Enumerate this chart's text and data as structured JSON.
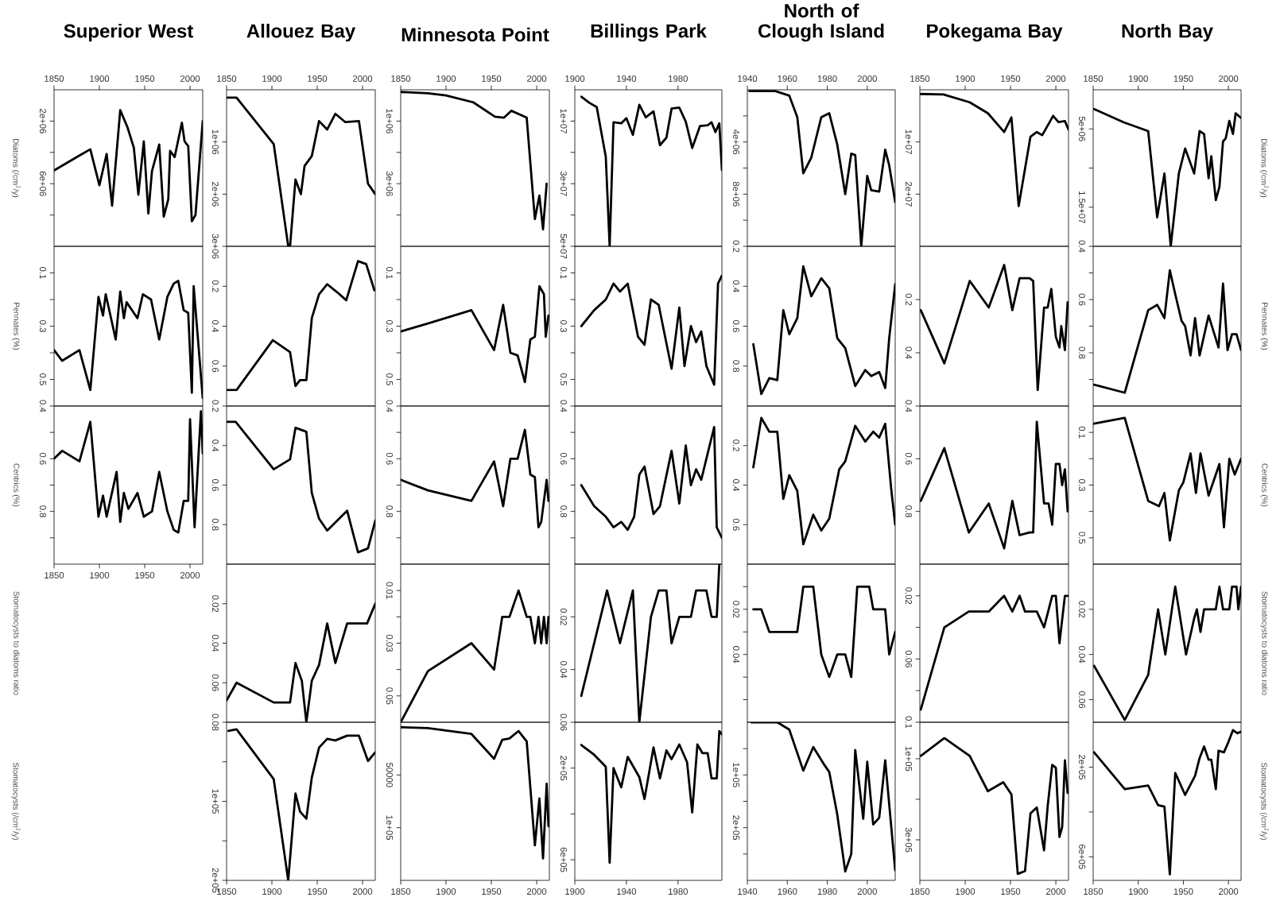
{
  "chart_data": [
    {
      "type": "line",
      "title": "Superior West",
      "ylabel": "Diatoms (/cm$^{2}$/y)",
      "xlim": [
        1850,
        2014
      ],
      "xticks": [
        1850,
        1900,
        1950,
        2000
      ],
      "ylim": [
        10000000,
        0
      ],
      "yticks": [
        {
          "value": 2000000,
          "label": "2e+06"
        },
        {
          "value": 4000000,
          "label": null
        },
        {
          "value": 6000000,
          "label": "6e+06"
        },
        {
          "value": 8000000,
          "label": null
        }
      ],
      "x": [
        1850,
        1878,
        1890,
        1900,
        1908,
        1914,
        1923,
        1931,
        1938,
        1943,
        1949,
        1954,
        1958,
        1966,
        1971,
        1976,
        1978,
        1983,
        1991,
        1994,
        1998,
        2002,
        2006,
        2014
      ],
      "values": [
        5150000,
        4200000,
        3800000,
        6100000,
        4100000,
        7400000,
        1300000,
        2400000,
        3700000,
        6700000,
        3300000,
        7900000,
        5200000,
        3500000,
        8100000,
        7000000,
        3900000,
        4300000,
        2100000,
        3300000,
        3600000,
        8400000,
        8000000,
        2000000
      ]
    },
    {
      "type": "line",
      "ylabel": "Pennates (%)",
      "tick_labels": "y",
      "xlim": [
        1850,
        2014
      ],
      "ylim": [
        0.6,
        0
      ],
      "yticks": [
        0.1,
        {
          "value": 0.2,
          "label": null
        },
        0.3,
        {
          "value": 0.4,
          "label": null
        },
        0.5
      ],
      "x": [
        1850,
        1859,
        1878,
        1890,
        1899,
        1904,
        1907,
        1918,
        1923,
        1927,
        1930,
        1942,
        1948,
        1957,
        1966,
        1975,
        1982,
        1987,
        1993,
        1998,
        2002,
        2004,
        2014
      ],
      "values": [
        0.39,
        0.43,
        0.39,
        0.54,
        0.19,
        0.26,
        0.18,
        0.35,
        0.17,
        0.27,
        0.21,
        0.27,
        0.18,
        0.2,
        0.35,
        0.19,
        0.14,
        0.13,
        0.24,
        0.25,
        0.55,
        0.15,
        0.57
      ]
    },
    {
      "type": "line",
      "ylabel": "Centrics (%)",
      "xlim": [
        1850,
        2014
      ],
      "xticks": [
        1850,
        1900,
        1950,
        2000
      ],
      "ylim": [
        1.0,
        0.4
      ],
      "yticks": [
        0.4,
        {
          "value": 0.5,
          "label": null
        },
        0.6,
        {
          "value": 0.7,
          "label": null
        },
        0.8,
        {
          "value": 0.9,
          "label": null
        }
      ],
      "x": [
        1850,
        1859,
        1878,
        1890,
        1899,
        1904,
        1908,
        1919,
        1923,
        1927,
        1932,
        1942,
        1949,
        1958,
        1966,
        1975,
        1982,
        1987,
        1993,
        1998,
        2000,
        2005,
        2012,
        2014
      ],
      "values": [
        0.6,
        0.57,
        0.61,
        0.46,
        0.82,
        0.74,
        0.82,
        0.65,
        0.84,
        0.73,
        0.79,
        0.73,
        0.82,
        0.8,
        0.65,
        0.8,
        0.87,
        0.88,
        0.76,
        0.76,
        0.45,
        0.86,
        0.42,
        0.58
      ]
    },
    {
      "type": "line",
      "title": "Allouez Bay",
      "xlim": [
        1850,
        2014
      ],
      "xticks": [
        1850,
        1900,
        1950,
        2000
      ],
      "ylim": [
        3000000,
        0
      ],
      "yticks": [
        {
          "value": 1000000,
          "label": "1e+06"
        },
        {
          "value": 2000000,
          "label": "2e+06"
        },
        {
          "value": 3000000,
          "label": "3e+06"
        }
      ],
      "x": [
        1850,
        1861,
        1902,
        1918,
        1920,
        1926,
        1932,
        1936,
        1944,
        1952,
        1961,
        1970,
        1981,
        1996,
        2006,
        2014
      ],
      "values": [
        150000,
        150000,
        1040000,
        3000000,
        3000000,
        1720000,
        2000000,
        1460000,
        1270000,
        600000,
        760000,
        460000,
        620000,
        600000,
        1800000,
        2000000
      ]
    },
    {
      "type": "line",
      "tick_labels": "y",
      "xlim": [
        1850,
        2014
      ],
      "ylim": [
        0.8,
        0
      ],
      "yticks": [
        0.2,
        0.4,
        0.6
      ],
      "x": [
        1850,
        1861,
        1901,
        1920,
        1926,
        1931,
        1938,
        1944,
        1952,
        1961,
        1972,
        1982,
        1995,
        2004,
        2013
      ],
      "values": [
        0.72,
        0.72,
        0.47,
        0.53,
        0.7,
        0.67,
        0.67,
        0.36,
        0.24,
        0.19,
        0.23,
        0.27,
        0.074,
        0.089,
        0.22
      ]
    },
    {
      "type": "line",
      "tick_labels": "y",
      "xlim": [
        1850,
        2014
      ],
      "ylim": [
        1.0,
        0.2
      ],
      "yticks": [
        0.2,
        0.4,
        0.6,
        0.8
      ],
      "x": [
        1850,
        1860,
        1902,
        1920,
        1926,
        1938,
        1944,
        1952,
        1961,
        1983,
        1995,
        2006,
        2014
      ],
      "values": [
        0.28,
        0.28,
        0.52,
        0.47,
        0.31,
        0.33,
        0.64,
        0.77,
        0.83,
        0.73,
        0.94,
        0.92,
        0.78
      ]
    },
    {
      "type": "line",
      "ylabel": "Stomatocysts to diatoms ratio",
      "tick_labels": "y",
      "xlim": [
        1850,
        2014
      ],
      "ylim": [
        0.08,
        0
      ],
      "yticks": [
        0.02,
        0.04,
        0.06,
        0.08
      ],
      "x": [
        1850,
        1861,
        1902,
        1920,
        1926,
        1933,
        1938,
        1944,
        1952,
        1961,
        1970,
        1983,
        2005,
        2014
      ],
      "values": [
        0.069,
        0.06,
        0.07,
        0.07,
        0.05,
        0.059,
        0.08,
        0.059,
        0.051,
        0.03,
        0.05,
        0.03,
        0.03,
        0.02
      ]
    },
    {
      "type": "line",
      "ylabel": "Stomatocysts (/cm$^{2}$/y)",
      "xlim": [
        1850,
        2014
      ],
      "xticks": [
        1850,
        1900,
        1950,
        2000
      ],
      "ylim": [
        200000,
        0
      ],
      "yticks": [
        {
          "value": 50000,
          "label": null
        },
        {
          "value": 100000,
          "label": "1e+05"
        },
        {
          "value": 150000,
          "label": null
        },
        {
          "value": 200000,
          "label": "2e+05"
        }
      ],
      "x": [
        1852,
        1861,
        1902,
        1918,
        1926,
        1931,
        1938,
        1944,
        1952,
        1961,
        1970,
        1983,
        1996,
        2006,
        2014
      ],
      "values": [
        11000,
        9000,
        72000,
        200000,
        90000,
        113000,
        122000,
        70000,
        32000,
        21000,
        23000,
        17000,
        17000,
        49000,
        38000
      ]
    },
    {
      "type": "line",
      "title": "Minnesota Point",
      "xlim": [
        1850,
        2014
      ],
      "xticks": [
        1850,
        1900,
        1950,
        2000
      ],
      "ylim": [
        5000000,
        0
      ],
      "yticks": [
        {
          "value": 1000000,
          "label": "1e+06"
        },
        {
          "value": 2000000,
          "label": null
        },
        {
          "value": 3000000,
          "label": "3e+06"
        },
        {
          "value": 4000000,
          "label": null
        }
      ],
      "x": [
        1850,
        1880,
        1900,
        1930,
        1954,
        1964,
        1972,
        1989,
        1998,
        2003,
        2007,
        2011
      ],
      "values": [
        70000,
        110000,
        180000,
        400000,
        860000,
        890000,
        670000,
        890000,
        4130000,
        3380000,
        4460000,
        3000000
      ]
    },
    {
      "type": "line",
      "tick_labels": "y",
      "xlim": [
        1850,
        2014
      ],
      "ylim": [
        0.6,
        0
      ],
      "yticks": [
        0.1,
        {
          "value": 0.2,
          "label": null
        },
        0.3,
        {
          "value": 0.4,
          "label": null
        },
        0.5
      ],
      "x": [
        1850,
        1880,
        1928,
        1953,
        1963,
        1971,
        1979,
        1987,
        1993,
        1998,
        2003,
        2008,
        2010,
        2013
      ],
      "values": [
        0.32,
        0.29,
        0.24,
        0.39,
        0.22,
        0.4,
        0.41,
        0.51,
        0.35,
        0.34,
        0.15,
        0.18,
        0.34,
        0.26
      ]
    },
    {
      "type": "line",
      "tick_labels": "y",
      "xlim": [
        1850,
        2014
      ],
      "ylim": [
        1.0,
        0.4
      ],
      "yticks": [
        0.4,
        {
          "value": 0.5,
          "label": null
        },
        0.6,
        {
          "value": 0.7,
          "label": null
        },
        0.8,
        {
          "value": 0.9,
          "label": null
        }
      ],
      "x": [
        1850,
        1880,
        1928,
        1953,
        1963,
        1971,
        1979,
        1987,
        1993,
        1998,
        2002,
        2005,
        2011,
        2013
      ],
      "values": [
        0.68,
        0.72,
        0.76,
        0.61,
        0.78,
        0.6,
        0.6,
        0.49,
        0.66,
        0.67,
        0.86,
        0.84,
        0.68,
        0.76
      ]
    },
    {
      "type": "line",
      "tick_labels": "y",
      "xlim": [
        1850,
        2014
      ],
      "ylim": [
        0.06,
        0
      ],
      "yticks": [
        0.01,
        {
          "value": 0.02,
          "label": null
        },
        0.03,
        {
          "value": 0.04,
          "label": null
        },
        0.05
      ],
      "x": [
        1850,
        1880,
        1928,
        1953,
        1962,
        1970,
        1980,
        1989,
        1993,
        1998,
        2002,
        2005,
        2008,
        2011,
        2013
      ],
      "values": [
        0.06,
        0.0406,
        0.03,
        0.04,
        0.02,
        0.02,
        0.01,
        0.02,
        0.02,
        0.03,
        0.02,
        0.03,
        0.02,
        0.03,
        0.02
      ]
    },
    {
      "type": "line",
      "xlim": [
        1850,
        2014
      ],
      "xticks": [
        1850,
        1900,
        1950,
        2000
      ],
      "ylim": [
        150000,
        0
      ],
      "yticks": [
        50000,
        {
          "value": 100000,
          "label": "1e+05"
        }
      ],
      "x": [
        1850,
        1880,
        1928,
        1953,
        1962,
        1970,
        1980,
        1989,
        1998,
        2003,
        2007,
        2011,
        2013
      ],
      "values": [
        4700,
        5600,
        11100,
        34700,
        16700,
        15300,
        8300,
        18100,
        116700,
        72200,
        129200,
        58300,
        98600
      ]
    },
    {
      "type": "line",
      "title": "Billings Park",
      "xlim": [
        1900,
        2014
      ],
      "xticks": [
        1900,
        1940,
        1980
      ],
      "ylim": [
        50000000,
        0
      ],
      "yticks": [
        {
          "value": 10000000,
          "label": "1e+07"
        },
        {
          "value": 20000000,
          "label": null
        },
        {
          "value": 30000000,
          "label": "3e+07"
        },
        {
          "value": 40000000,
          "label": null
        },
        {
          "value": 50000000,
          "label": "5e+07"
        }
      ],
      "x": [
        1905,
        1911,
        1917,
        1924,
        1927,
        1930,
        1936,
        1940,
        1945,
        1950,
        1955,
        1961,
        1966,
        1971,
        1975,
        1981,
        1986,
        1991,
        1997,
        2003,
        2006,
        2009,
        2012,
        2014
      ],
      "values": [
        2200000,
        4100000,
        5500000,
        21400000,
        50000000,
        10400000,
        10700000,
        9100000,
        14400000,
        4800000,
        8800000,
        6900000,
        17700000,
        15300000,
        6000000,
        5700000,
        10200000,
        18600000,
        11600000,
        11300000,
        10400000,
        13500000,
        10700000,
        25600000
      ]
    },
    {
      "type": "line",
      "tick_labels": "y",
      "xlim": [
        1900,
        2014
      ],
      "ylim": [
        0.6,
        0
      ],
      "yticks": [
        0.1,
        {
          "value": 0.2,
          "label": null
        },
        0.3,
        {
          "value": 0.4,
          "label": null
        },
        0.5
      ],
      "x": [
        1905,
        1915,
        1924,
        1930,
        1935,
        1941,
        1949,
        1954,
        1959,
        1965,
        1975,
        1981,
        1985,
        1990,
        1994,
        1998,
        2002,
        2008,
        2011,
        2014
      ],
      "values": [
        0.3,
        0.24,
        0.2,
        0.14,
        0.17,
        0.14,
        0.34,
        0.37,
        0.2,
        0.22,
        0.46,
        0.23,
        0.45,
        0.3,
        0.36,
        0.32,
        0.45,
        0.52,
        0.14,
        0.11
      ]
    },
    {
      "type": "line",
      "tick_labels": "y",
      "xlim": [
        1900,
        2014
      ],
      "ylim": [
        1.0,
        0.4
      ],
      "yticks": [
        0.4,
        {
          "value": 0.5,
          "label": null
        },
        0.6,
        {
          "value": 0.7,
          "label": null
        },
        0.8,
        {
          "value": 0.9,
          "label": null
        }
      ],
      "x": [
        1905,
        1915,
        1924,
        1930,
        1936,
        1941,
        1946,
        1950,
        1954,
        1961,
        1966,
        1975,
        1981,
        1986,
        1990,
        1994,
        1998,
        2003,
        2008,
        2010,
        2014
      ],
      "values": [
        0.7,
        0.78,
        0.82,
        0.86,
        0.84,
        0.87,
        0.82,
        0.66,
        0.63,
        0.81,
        0.78,
        0.57,
        0.77,
        0.55,
        0.7,
        0.64,
        0.68,
        0.58,
        0.48,
        0.86,
        0.9
      ]
    },
    {
      "type": "line",
      "tick_labels": "y",
      "xlim": [
        1900,
        2014
      ],
      "ylim": [
        0.06,
        0
      ],
      "yticks": [
        0.02,
        0.04,
        0.06
      ],
      "x": [
        1905,
        1915,
        1925,
        1935,
        1945,
        1950,
        1959,
        1965,
        1971,
        1975,
        1981,
        1990,
        1994,
        2002,
        2006,
        2010,
        2012
      ],
      "values": [
        0.05,
        0.03,
        0.01,
        0.03,
        0.01,
        0.06,
        0.02,
        0.01,
        0.01,
        0.03,
        0.02,
        0.02,
        0.01,
        0.01,
        0.02,
        0.02,
        0.0
      ]
    },
    {
      "type": "line",
      "xlim": [
        1900,
        2014
      ],
      "xticks": [
        1900,
        1940,
        1980
      ],
      "ylim": [
        690000,
        0
      ],
      "yticks": [
        {
          "value": 200000,
          "label": "2e+05"
        },
        {
          "value": 400000,
          "label": null
        },
        {
          "value": 600000,
          "label": "6e+05"
        }
      ],
      "x": [
        1905,
        1915,
        1924,
        1927,
        1930,
        1936,
        1941,
        1950,
        1954,
        1961,
        1966,
        1971,
        1975,
        1981,
        1987,
        1991,
        1995,
        1999,
        2003,
        2006,
        2010,
        2012,
        2014
      ],
      "values": [
        99000,
        142000,
        194000,
        613000,
        200000,
        284000,
        151000,
        239000,
        335000,
        110000,
        245000,
        123000,
        161000,
        97000,
        174000,
        393000,
        97000,
        135000,
        135000,
        245000,
        245000,
        39000,
        52000
      ]
    },
    {
      "type": "line",
      "title": "North of Clough Island",
      "xlim": [
        1940,
        2014
      ],
      "xticks": [
        1940,
        1960,
        1980,
        2000
      ],
      "ylim": [
        12000000,
        0
      ],
      "yticks": [
        {
          "value": 2000000,
          "label": null
        },
        {
          "value": 4000000,
          "label": "4e+06"
        },
        {
          "value": 6000000,
          "label": null
        },
        {
          "value": 8000000,
          "label": "8e+06"
        },
        {
          "value": 10000000,
          "label": null
        }
      ],
      "x": [
        1941,
        1954,
        1961,
        1965,
        1968,
        1972,
        1977,
        1981,
        1985,
        1989,
        1992,
        1994,
        1997,
        2000,
        2002,
        2006,
        2009,
        2011,
        2014
      ],
      "values": [
        100000,
        100000,
        450000,
        2100000,
        6400000,
        5200000,
        2100000,
        1800000,
        4200000,
        8000000,
        4900000,
        5000000,
        12000000,
        6600000,
        7700000,
        7800000,
        4600000,
        5800000,
        8600000
      ]
    },
    {
      "type": "line",
      "tick_labels": "y",
      "xlim": [
        1940,
        2014
      ],
      "ylim": [
        1.0,
        0.2
      ],
      "yticks": [
        0.2,
        0.4,
        0.6,
        0.8
      ],
      "x": [
        1943,
        1947,
        1951,
        1955,
        1958,
        1961,
        1965,
        1968,
        1972,
        1977,
        1981,
        1985,
        1989,
        1994,
        1999,
        2002,
        2006,
        2009,
        2011,
        2014
      ],
      "values": [
        0.69,
        0.94,
        0.86,
        0.87,
        0.52,
        0.64,
        0.56,
        0.3,
        0.45,
        0.36,
        0.41,
        0.66,
        0.71,
        0.9,
        0.82,
        0.85,
        0.83,
        0.91,
        0.66,
        0.39
      ]
    },
    {
      "type": "line",
      "tick_labels": "y",
      "xlim": [
        1940,
        2014
      ],
      "ylim": [
        0.8,
        0
      ],
      "yticks": [
        0.2,
        0.4,
        0.6
      ],
      "x": [
        1943,
        1947,
        1951,
        1955,
        1958,
        1961,
        1965,
        1968,
        1973,
        1977,
        1981,
        1986,
        1989,
        1994,
        1999,
        2003,
        2006,
        2009,
        2012,
        2014
      ],
      "values": [
        0.31,
        0.06,
        0.13,
        0.13,
        0.47,
        0.35,
        0.43,
        0.7,
        0.55,
        0.63,
        0.57,
        0.32,
        0.28,
        0.1,
        0.18,
        0.13,
        0.16,
        0.09,
        0.42,
        0.6
      ]
    },
    {
      "type": "line",
      "tick_labels": "y",
      "xlim": [
        1940,
        2014
      ],
      "ylim": [
        0.07,
        0
      ],
      "yticks": [
        {
          "value": 0.01,
          "label": null
        },
        0.02,
        {
          "value": 0.03,
          "label": null
        },
        0.04,
        {
          "value": 0.05,
          "label": null
        },
        {
          "value": 0.06,
          "label": null
        }
      ],
      "x": [
        1943,
        1947,
        1951,
        1965,
        1968,
        1973,
        1977,
        1981,
        1985,
        1989,
        1992,
        1995,
        2001,
        2003,
        2009,
        2011,
        2014
      ],
      "values": [
        0.02,
        0.02,
        0.03,
        0.03,
        0.01,
        0.01,
        0.04,
        0.05,
        0.04,
        0.04,
        0.05,
        0.01,
        0.01,
        0.02,
        0.02,
        0.04,
        0.03
      ]
    },
    {
      "type": "line",
      "xlim": [
        1940,
        2014
      ],
      "xticks": [
        1940,
        1960,
        1980,
        2000
      ],
      "ylim": [
        300000,
        0
      ],
      "yticks": [
        {
          "value": 50000,
          "label": null
        },
        {
          "value": 100000,
          "label": "1e+05"
        },
        {
          "value": 150000,
          "label": null
        },
        {
          "value": 200000,
          "label": "2e+05"
        },
        {
          "value": 250000,
          "label": null
        }
      ],
      "x": [
        1942,
        1955,
        1961,
        1968,
        1973,
        1978,
        1981,
        1985,
        1989,
        1992,
        1994,
        1998,
        2000,
        2003,
        2006,
        2009,
        2014
      ],
      "values": [
        0,
        0,
        13900,
        91700,
        47200,
        77800,
        94400,
        175000,
        283000,
        250000,
        52800,
        183000,
        75000,
        194000,
        181000,
        72200,
        281000
      ]
    },
    {
      "type": "line",
      "title": "Pokegama Bay",
      "xlim": [
        1850,
        2014
      ],
      "xticks": [
        1850,
        1900,
        1950,
        2000
      ],
      "ylim": [
        30000000,
        0
      ],
      "yticks": [
        {
          "value": 10000000,
          "label": "1e+07"
        },
        {
          "value": 20000000,
          "label": "2e+07"
        }
      ],
      "x": [
        1850,
        1876,
        1905,
        1925,
        1943,
        1951,
        1959,
        1972,
        1979,
        1985,
        1997,
        2003,
        2010,
        2014
      ],
      "values": [
        800000,
        900000,
        2400000,
        4500000,
        8100000,
        5300000,
        22300000,
        9000000,
        8100000,
        8700000,
        5000000,
        6200000,
        6000000,
        7600000
      ]
    },
    {
      "type": "line",
      "tick_labels": "y",
      "xlim": [
        1850,
        2014
      ],
      "ylim": [
        0.6,
        0
      ],
      "yticks": [
        0.2,
        0.4
      ],
      "x": [
        1851,
        1877,
        1905,
        1926,
        1943,
        1952,
        1960,
        1971,
        1975,
        1980,
        1987,
        1991,
        1995,
        2000,
        2004,
        2006,
        2010,
        2013
      ],
      "values": [
        0.24,
        0.44,
        0.13,
        0.23,
        0.07,
        0.24,
        0.12,
        0.12,
        0.13,
        0.54,
        0.23,
        0.23,
        0.16,
        0.34,
        0.38,
        0.3,
        0.39,
        0.21
      ]
    },
    {
      "type": "line",
      "tick_labels": "y",
      "xlim": [
        1850,
        2014
      ],
      "ylim": [
        1.0,
        0.4
      ],
      "yticks": [
        0.4,
        0.6,
        0.8
      ],
      "x": [
        1851,
        1877,
        1904,
        1926,
        1943,
        1952,
        1960,
        1971,
        1975,
        1979,
        1987,
        1992,
        1996,
        2000,
        2004,
        2007,
        2010,
        2013
      ],
      "values": [
        0.76,
        0.56,
        0.88,
        0.77,
        0.94,
        0.76,
        0.89,
        0.88,
        0.88,
        0.46,
        0.77,
        0.77,
        0.85,
        0.62,
        0.62,
        0.7,
        0.64,
        0.8
      ]
    },
    {
      "type": "line",
      "tick_labels": "y",
      "xlim": [
        1850,
        2014
      ],
      "ylim": [
        0.1,
        0
      ],
      "yticks": [
        0.02,
        {
          "value": 0.04,
          "label": null
        },
        0.06,
        {
          "value": 0.08,
          "label": null
        },
        0.1
      ],
      "x": [
        1851,
        1877,
        1904,
        1926,
        1943,
        1952,
        1960,
        1966,
        1979,
        1987,
        1996,
        2000,
        2004,
        2010,
        2014
      ],
      "values": [
        0.092,
        0.04,
        0.03,
        0.03,
        0.02,
        0.03,
        0.02,
        0.03,
        0.03,
        0.04,
        0.02,
        0.02,
        0.05,
        0.02,
        0.02
      ]
    },
    {
      "type": "line",
      "xlim": [
        1850,
        2014
      ],
      "xticks": [
        1850,
        1900,
        1950,
        2000
      ],
      "ylim": [
        400000,
        10000
      ],
      "yticks": [
        {
          "value": 100000,
          "label": "1e+05"
        },
        {
          "value": 200000,
          "label": null
        },
        {
          "value": 300000,
          "label": "3e+05"
        }
      ],
      "x": [
        1851,
        1877,
        1905,
        1925,
        1942,
        1951,
        1958,
        1966,
        1972,
        1979,
        1987,
        1991,
        1996,
        2000,
        2004,
        2007,
        2010,
        2013
      ],
      "values": [
        93000,
        49000,
        93000,
        180000,
        158000,
        188000,
        384000,
        377000,
        235000,
        220000,
        326000,
        217000,
        115000,
        122000,
        293000,
        268000,
        104000,
        184000
      ]
    },
    {
      "type": "line",
      "title": "North Bay",
      "ylabel": "Diatoms (/cm$^{2}$/y)",
      "xlim": [
        1850,
        2014
      ],
      "xticks": [
        1850,
        1900,
        1950,
        2000
      ],
      "ylim": [
        20000000,
        0
      ],
      "yticks": [
        {
          "value": 5000000,
          "label": "5e+06"
        },
        {
          "value": 10000000,
          "label": null
        },
        {
          "value": 15000000,
          "label": "1.5e+07"
        }
      ],
      "x": [
        1851,
        1884,
        1911,
        1921,
        1929,
        1936,
        1945,
        1952,
        1962,
        1968,
        1973,
        1978,
        1981,
        1986,
        1990,
        1994,
        1997,
        2001,
        2005,
        2008,
        2014
      ],
      "values": [
        2470000,
        4160000,
        5280000,
        16300000,
        10700000,
        20000000,
        10700000,
        7500000,
        10700000,
        5280000,
        5650000,
        11300000,
        8500000,
        14100000,
        12400000,
        6600000,
        6200000,
        3970000,
        5650000,
        3000000,
        3600000
      ]
    },
    {
      "type": "line",
      "ylabel": "Pennates (%)",
      "tick_labels": "y",
      "xlim": [
        1850,
        2014
      ],
      "ylim": [
        1.0,
        0.4
      ],
      "yticks": [
        0.4,
        {
          "value": 0.5,
          "label": null
        },
        0.6,
        {
          "value": 0.7,
          "label": null
        },
        0.8,
        {
          "value": 0.9,
          "label": null
        }
      ],
      "x": [
        1851,
        1885,
        1911,
        1921,
        1929,
        1935,
        1941,
        1948,
        1952,
        1958,
        1963,
        1968,
        1978,
        1989,
        1994,
        1999,
        2004,
        2009,
        2014
      ],
      "values": [
        0.92,
        0.95,
        0.64,
        0.62,
        0.67,
        0.49,
        0.58,
        0.68,
        0.7,
        0.81,
        0.67,
        0.81,
        0.66,
        0.78,
        0.54,
        0.79,
        0.73,
        0.73,
        0.79
      ]
    },
    {
      "type": "line",
      "ylabel": "Centrics (%)",
      "tick_labels": "y",
      "xlim": [
        1850,
        2014
      ],
      "ylim": [
        0.6,
        0
      ],
      "yticks": [
        0.1,
        {
          "value": 0.2,
          "label": null
        },
        0.3,
        {
          "value": 0.4,
          "label": null
        },
        0.5
      ],
      "x": [
        1851,
        1885,
        1911,
        1923,
        1929,
        1935,
        1945,
        1950,
        1958,
        1964,
        1969,
        1978,
        1990,
        1995,
        2001,
        2007,
        2014
      ],
      "values": [
        0.067,
        0.045,
        0.36,
        0.38,
        0.33,
        0.51,
        0.32,
        0.29,
        0.18,
        0.33,
        0.18,
        0.34,
        0.22,
        0.46,
        0.2,
        0.26,
        0.2
      ]
    },
    {
      "type": "line",
      "ylabel": "Stomatocysts to diatoms ratio",
      "tick_labels": "y",
      "xlim": [
        1850,
        2014
      ],
      "ylim": [
        0.07,
        0
      ],
      "yticks": [
        0.02,
        0.04,
        0.06
      ],
      "x": [
        1851,
        1885,
        1911,
        1922,
        1930,
        1941,
        1953,
        1962,
        1965,
        1969,
        1973,
        1986,
        1990,
        1994,
        2001,
        2004,
        2009,
        2011,
        2014
      ],
      "values": [
        0.045,
        0.069,
        0.049,
        0.02,
        0.04,
        0.01,
        0.04,
        0.024,
        0.02,
        0.03,
        0.02,
        0.02,
        0.01,
        0.02,
        0.02,
        0.01,
        0.01,
        0.02,
        0.01
      ]
    },
    {
      "type": "line",
      "ylabel": "Stomatocysts (/cm$^{2}$/y)",
      "xlim": [
        1850,
        2014
      ],
      "xticks": [
        1850,
        1900,
        1950,
        2000
      ],
      "ylim": [
        705000,
        0
      ],
      "yticks": [
        {
          "value": 200000,
          "label": "2e+05"
        },
        {
          "value": 400000,
          "label": null
        },
        {
          "value": 600000,
          "label": "6e+05"
        }
      ],
      "x": [
        1851,
        1885,
        1911,
        1922,
        1929,
        1935,
        1941,
        1952,
        1963,
        1968,
        1973,
        1978,
        1981,
        1986,
        1989,
        1995,
        2000,
        2005,
        2010,
        2014
      ],
      "values": [
        134000,
        298000,
        282000,
        370000,
        376000,
        678000,
        226000,
        324000,
        239000,
        160000,
        108000,
        167000,
        167000,
        298000,
        127000,
        134000,
        88000,
        35000,
        49000,
        42000
      ]
    }
  ]
}
